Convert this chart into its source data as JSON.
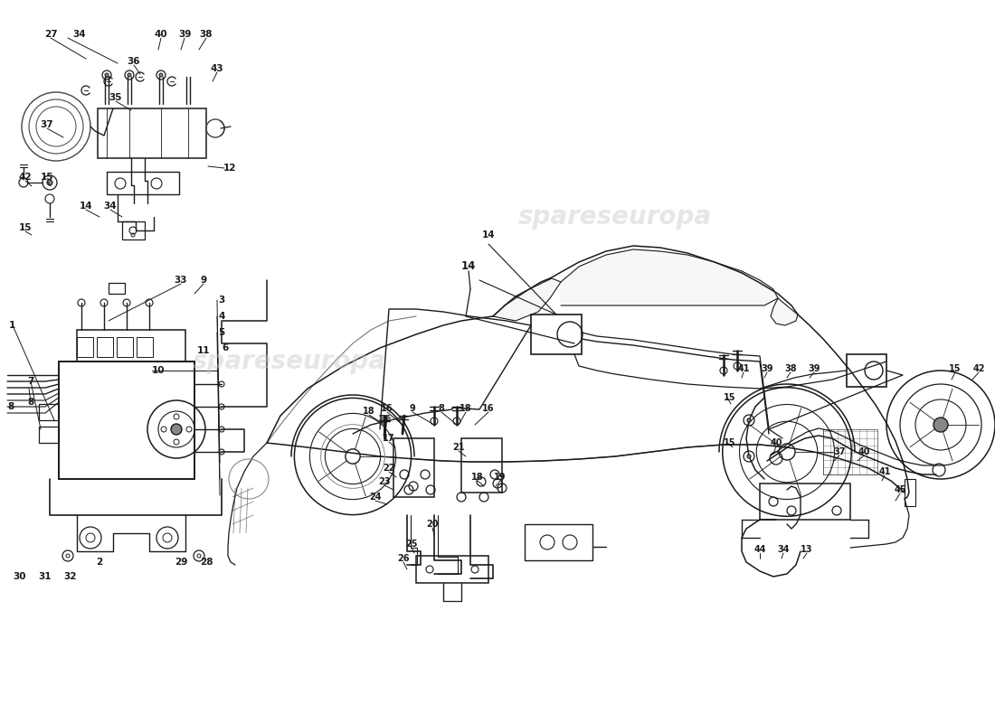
{
  "bg": "#ffffff",
  "lc": "#1a1a1a",
  "wc": "#c8c8c8",
  "fig_w": 11.0,
  "fig_h": 8.0,
  "dpi": 100
}
